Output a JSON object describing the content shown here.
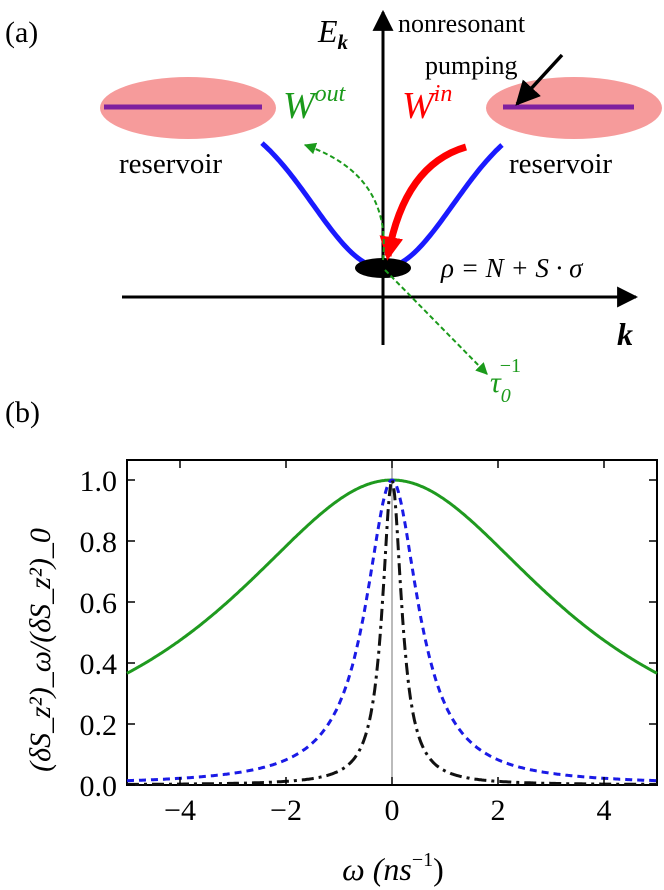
{
  "panel_a": {
    "label": "(a)",
    "energy_axis": "E",
    "energy_axis_sub": "k",
    "momentum_axis": "k",
    "pumping_line1": "nonresonant",
    "pumping_line2": "pumping",
    "reservoir_left": "reservoir",
    "reservoir_right": "reservoir",
    "w_out": "W",
    "w_out_sup": "out",
    "w_in": "W",
    "w_in_sup": "in",
    "rho_equation": "ρ = N + S · σ",
    "tau": "τ",
    "tau_sub": "0",
    "tau_sup": "−1",
    "colors": {
      "dispersion": "#1a1aff",
      "reservoir_fill": "#f08080",
      "reservoir_line": "#7f1f9f",
      "w_out": "#1b9a1b",
      "w_in": "#ff0000"
    }
  },
  "panel_b": {
    "label": "(b)"
  },
  "chart_data": {
    "type": "line",
    "xlabel": "ω (ns",
    "xlabel_sup": "−1",
    "xlabel_end": ")",
    "ylabel": "(δS_z²)_ω/(δS_z²)_0",
    "xlim": [
      -5,
      5
    ],
    "ylim": [
      0,
      1.0
    ],
    "x_ticks": [
      -4,
      -2,
      0,
      2,
      4
    ],
    "x_tick_labels": [
      "−4",
      "−2",
      "0",
      "2",
      "4"
    ],
    "y_ticks": [
      0.0,
      0.2,
      0.4,
      0.6,
      0.8,
      1.0
    ],
    "y_tick_labels": [
      "0.0",
      "0.2",
      "0.4",
      "0.6",
      "0.8",
      "1.0"
    ],
    "series": [
      {
        "style": "solid",
        "color": "#1f9a1f",
        "lorentzian_halfwidth": 3.8
      },
      {
        "style": "dashed",
        "color": "#1a1ae6",
        "lorentzian_halfwidth": 0.6
      },
      {
        "style": "dashdot",
        "color": "#111111",
        "lorentzian_halfwidth": 0.22
      }
    ]
  }
}
